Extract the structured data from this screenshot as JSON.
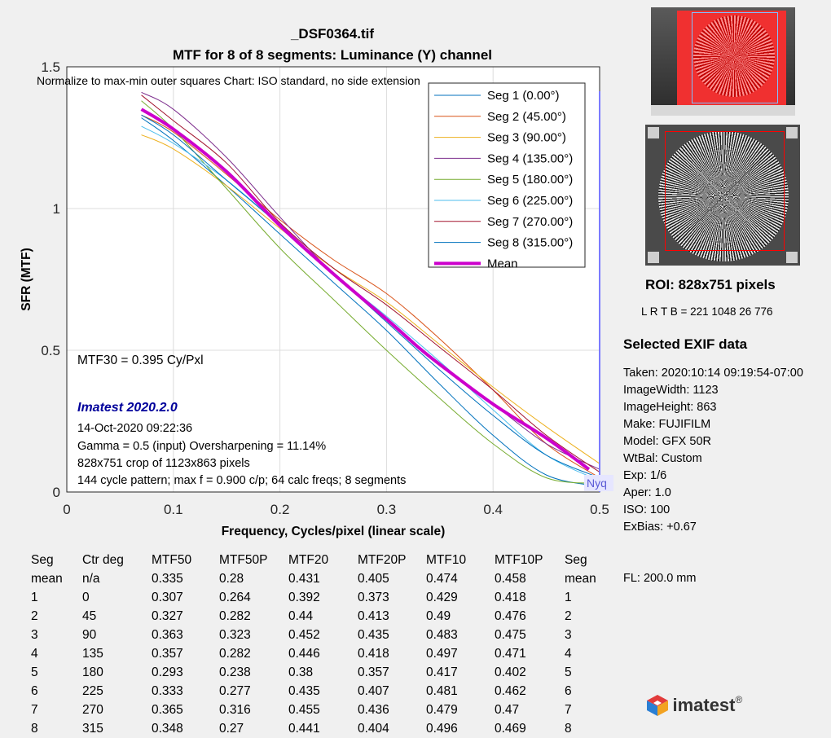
{
  "chart_data": {
    "type": "line",
    "title": "_DSF0364.tif",
    "subtitle": "MTF for 8 of 8 segments:  Luminance (Y) channel",
    "xlabel": "Frequency, Cycles/pixel (linear scale)",
    "ylabel": "SFR (MTF)",
    "xlim": [
      0,
      0.5
    ],
    "ylim": [
      0,
      1.5
    ],
    "xticks": [
      "0",
      "0.1",
      "0.2",
      "0.3",
      "0.4",
      "0.5"
    ],
    "yticks": [
      "0",
      "0.5",
      "1",
      "1.5"
    ],
    "grid": true,
    "legend_position": "top-right",
    "normalize_note": "Normalize to max-min outer squares   Chart: ISO standard, no side extension",
    "mtf30_text": "MTF30 = 0.395 Cy/Pxl",
    "nyquist_label": "Nyq",
    "nyquist_x": 0.5,
    "series": [
      {
        "name": "Seg 1 (0.00°)",
        "color": "#0072bd",
        "width": 1,
        "x": [
          0.07,
          0.1,
          0.15,
          0.2,
          0.25,
          0.3,
          0.35,
          0.4,
          0.45,
          0.5
        ],
        "y": [
          1.32,
          1.24,
          1.08,
          0.91,
          0.74,
          0.57,
          0.38,
          0.2,
          0.06,
          0.02
        ]
      },
      {
        "name": "Seg 2 (45.00°)",
        "color": "#d95319",
        "width": 1,
        "x": [
          0.07,
          0.1,
          0.15,
          0.2,
          0.25,
          0.3,
          0.35,
          0.4,
          0.45,
          0.5
        ],
        "y": [
          1.33,
          1.27,
          1.12,
          0.96,
          0.82,
          0.7,
          0.54,
          0.36,
          0.17,
          0.05
        ]
      },
      {
        "name": "Seg 3 (90.00°)",
        "color": "#edb120",
        "width": 1,
        "x": [
          0.07,
          0.1,
          0.15,
          0.2,
          0.25,
          0.3,
          0.35,
          0.4,
          0.45,
          0.5
        ],
        "y": [
          1.26,
          1.21,
          1.08,
          0.93,
          0.79,
          0.67,
          0.52,
          0.37,
          0.23,
          0.1
        ]
      },
      {
        "name": "Seg 4 (135.00°)",
        "color": "#7e2f8e",
        "width": 1,
        "x": [
          0.07,
          0.1,
          0.15,
          0.2,
          0.25,
          0.3,
          0.35,
          0.4,
          0.45,
          0.5
        ],
        "y": [
          1.41,
          1.35,
          1.18,
          0.97,
          0.77,
          0.61,
          0.45,
          0.31,
          0.17,
          0.08
        ]
      },
      {
        "name": "Seg 5 (180.00°)",
        "color": "#77ac30",
        "width": 1,
        "x": [
          0.07,
          0.1,
          0.15,
          0.2,
          0.25,
          0.3,
          0.35,
          0.4,
          0.45,
          0.5
        ],
        "y": [
          1.38,
          1.28,
          1.07,
          0.86,
          0.68,
          0.5,
          0.33,
          0.17,
          0.05,
          0.03
        ]
      },
      {
        "name": "Seg 6 (225.00°)",
        "color": "#4dbeee",
        "width": 1,
        "x": [
          0.07,
          0.1,
          0.15,
          0.2,
          0.25,
          0.3,
          0.35,
          0.4,
          0.45,
          0.5
        ],
        "y": [
          1.29,
          1.23,
          1.1,
          0.94,
          0.77,
          0.62,
          0.46,
          0.29,
          0.13,
          0.04
        ]
      },
      {
        "name": "Seg 7 (270.00°)",
        "color": "#a2142f",
        "width": 1,
        "x": [
          0.07,
          0.1,
          0.15,
          0.2,
          0.25,
          0.3,
          0.35,
          0.4,
          0.45,
          0.5
        ],
        "y": [
          1.4,
          1.31,
          1.16,
          0.95,
          0.79,
          0.66,
          0.51,
          0.36,
          0.2,
          0.07
        ]
      },
      {
        "name": "Seg 8 (315.00°)",
        "color": "#0072bd",
        "width": 1,
        "x": [
          0.07,
          0.1,
          0.15,
          0.2,
          0.25,
          0.3,
          0.35,
          0.4,
          0.45,
          0.5
        ],
        "y": [
          1.33,
          1.26,
          1.1,
          0.94,
          0.77,
          0.6,
          0.43,
          0.27,
          0.13,
          0.05
        ]
      },
      {
        "name": "Mean",
        "color": "#cc00cc",
        "width": 4,
        "x": [
          0.07,
          0.1,
          0.15,
          0.2,
          0.25,
          0.3,
          0.33,
          0.35,
          0.4,
          0.45,
          0.49
        ],
        "y": [
          1.35,
          1.28,
          1.13,
          0.94,
          0.77,
          0.61,
          0.51,
          0.45,
          0.31,
          0.19,
          0.08
        ]
      }
    ]
  },
  "imatest": {
    "version": "Imatest 2020.2.0",
    "date": "14-Oct-2020 09:22:36",
    "gamma": "Gamma = 0.5 (input)  Oversharpening = 11.14%",
    "crop": "828x751 crop of 1123x863 pixels",
    "pattern": "144 cycle pattern; max f = 0.900 c/p;  64 calc freqs;  8 segments"
  },
  "roi": {
    "title": "ROI:  828x751 pixels",
    "lrtb": "L R  T B = 221 1048  26 776"
  },
  "exif": {
    "title": "Selected EXIF data",
    "lines": [
      "Taken: 2020:10:14 09:19:54-07:00",
      "ImageWidth:  1123",
      "ImageHeight:  863",
      "Make:  FUJIFILM",
      "Model: GFX 50R",
      "WtBal:  Custom",
      "Exp:   1/6",
      "Aper:  1.0",
      "ISO:   100",
      "ExBias:  +0.67"
    ],
    "fl": "FL:   200.0 mm"
  },
  "table": {
    "headers": [
      "Seg",
      "Ctr deg",
      "MTF50",
      "MTF50P",
      "MTF20",
      "MTF20P",
      "MTF10",
      "MTF10P",
      "Seg"
    ],
    "rows": [
      [
        "mean",
        "n/a",
        "0.335",
        "0.28",
        "0.431",
        "0.405",
        "0.474",
        "0.458",
        "mean"
      ],
      [
        "1",
        "0",
        "0.307",
        "0.264",
        "0.392",
        "0.373",
        "0.429",
        "0.418",
        "1"
      ],
      [
        "2",
        "45",
        "0.327",
        "0.282",
        "0.44",
        "0.413",
        "0.49",
        "0.476",
        "2"
      ],
      [
        "3",
        "90",
        "0.363",
        "0.323",
        "0.452",
        "0.435",
        "0.483",
        "0.475",
        "3"
      ],
      [
        "4",
        "135",
        "0.357",
        "0.282",
        "0.446",
        "0.418",
        "0.497",
        "0.471",
        "4"
      ],
      [
        "5",
        "180",
        "0.293",
        "0.238",
        "0.38",
        "0.357",
        "0.417",
        "0.402",
        "5"
      ],
      [
        "6",
        "225",
        "0.333",
        "0.277",
        "0.435",
        "0.407",
        "0.481",
        "0.462",
        "6"
      ],
      [
        "7",
        "270",
        "0.365",
        "0.316",
        "0.455",
        "0.436",
        "0.479",
        "0.47",
        "7"
      ],
      [
        "8",
        "315",
        "0.348",
        "0.27",
        "0.441",
        "0.404",
        "0.496",
        "0.469",
        "8"
      ]
    ]
  },
  "logo": {
    "text": "imatest",
    "mark": "®"
  },
  "colors": {
    "mean": "#cc00cc",
    "imatest_blue": "#00009b",
    "roi_red": "#ff0000"
  }
}
